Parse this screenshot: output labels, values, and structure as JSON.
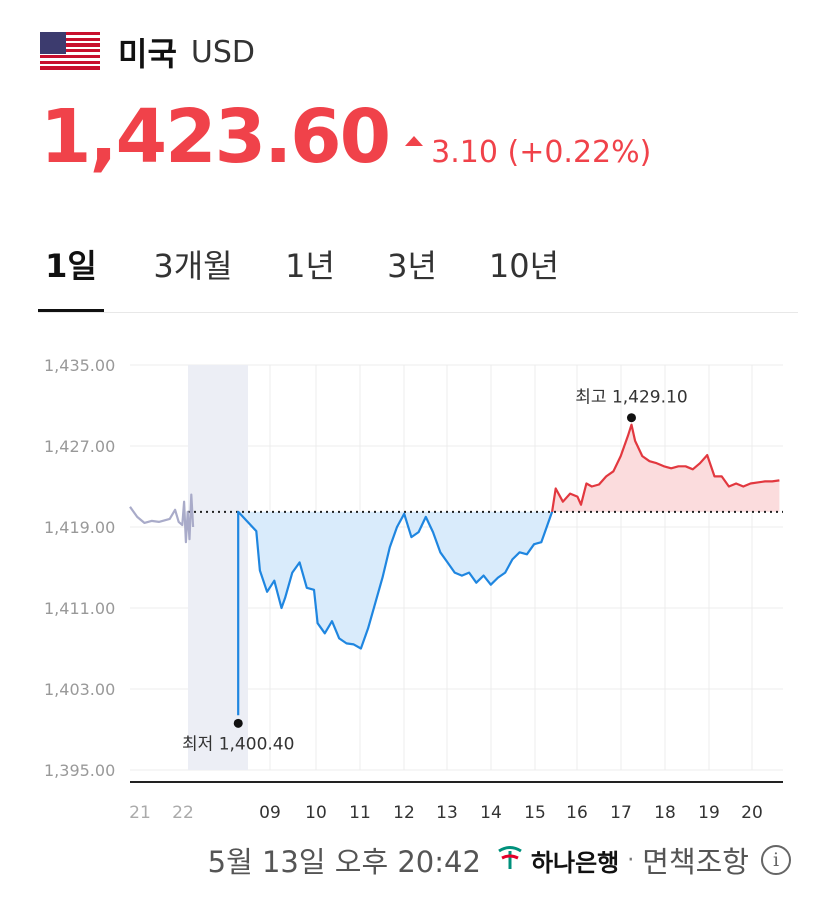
{
  "header": {
    "country": "미국",
    "currency": "USD",
    "flag_icon": "us-flag-icon"
  },
  "quote": {
    "price": "1,423.60",
    "change": "3.10 (+0.22%)",
    "direction": "up",
    "color": "#f0424a"
  },
  "tabs": [
    {
      "label": "1일",
      "active": true
    },
    {
      "label": "3개월",
      "active": false
    },
    {
      "label": "1년",
      "active": false
    },
    {
      "label": "3년",
      "active": false
    },
    {
      "label": "10년",
      "active": false
    }
  ],
  "chart_data": {
    "type": "line",
    "y_ticks": [
      "1,435.00",
      "1,427.00",
      "1,419.00",
      "1,411.00",
      "1,403.00",
      "1,395.00"
    ],
    "ylim": [
      1395,
      1435
    ],
    "x_ticks": [
      "21",
      "22",
      "moon-icon",
      "09",
      "10",
      "11",
      "12",
      "13",
      "14",
      "15",
      "16",
      "17",
      "18",
      "19",
      "20"
    ],
    "baseline": 1420.5,
    "high_label": "최고 1,429.10",
    "high_value": 1429.1,
    "low_label": "최저 1,400.40",
    "low_value": 1400.4,
    "colors": {
      "previous": "#a9abc9",
      "down": "#1f86e0",
      "up": "#e2383f",
      "down_fill": "#d9ebfb",
      "up_fill": "#fbdcdd",
      "night_band": "#eceef5"
    },
    "series": [
      {
        "segment": "previous",
        "points": [
          [
            20.5,
            1421
          ],
          [
            20.7,
            1420
          ],
          [
            20.9,
            1419.4
          ],
          [
            21.1,
            1419.6
          ],
          [
            21.3,
            1419.5
          ],
          [
            21.6,
            1419.8
          ],
          [
            21.75,
            1420.7
          ],
          [
            21.85,
            1419.5
          ],
          [
            21.95,
            1419.2
          ],
          [
            22.0,
            1421.5
          ],
          [
            22.05,
            1417.5
          ],
          [
            22.1,
            1420.5
          ],
          [
            22.15,
            1417.8
          ],
          [
            22.2,
            1422.2
          ],
          [
            22.25,
            1419
          ]
        ]
      },
      {
        "segment": "down",
        "points": [
          [
            23.5,
            1400.4
          ],
          [
            23.5,
            1420.5
          ],
          [
            24.0,
            1418.6
          ],
          [
            24.1,
            1414.7
          ],
          [
            24.3,
            1412.6
          ],
          [
            24.5,
            1413.7
          ],
          [
            24.7,
            1411
          ],
          [
            24.8,
            1412
          ],
          [
            25.0,
            1414.5
          ],
          [
            25.2,
            1415.5
          ],
          [
            25.4,
            1413
          ],
          [
            25.6,
            1412.8
          ],
          [
            25.7,
            1409.5
          ],
          [
            25.9,
            1408.5
          ],
          [
            26.1,
            1409.7
          ],
          [
            26.3,
            1408
          ],
          [
            26.5,
            1407.5
          ],
          [
            26.7,
            1407.4
          ],
          [
            26.9,
            1407
          ],
          [
            27.1,
            1409
          ],
          [
            27.3,
            1411.5
          ],
          [
            27.5,
            1414
          ],
          [
            27.7,
            1417
          ],
          [
            27.9,
            1419
          ],
          [
            28.1,
            1420.3
          ],
          [
            28.3,
            1418
          ],
          [
            28.5,
            1418.5
          ],
          [
            28.7,
            1420
          ],
          [
            28.9,
            1418.5
          ],
          [
            29.1,
            1416.5
          ],
          [
            29.3,
            1415.5
          ],
          [
            29.5,
            1414.5
          ],
          [
            29.7,
            1414.2
          ],
          [
            29.9,
            1414.5
          ],
          [
            30.1,
            1413.5
          ],
          [
            30.3,
            1414.2
          ],
          [
            30.5,
            1413.3
          ],
          [
            30.7,
            1414
          ],
          [
            30.9,
            1414.5
          ],
          [
            31.1,
            1415.8
          ],
          [
            31.3,
            1416.5
          ],
          [
            31.5,
            1416.3
          ],
          [
            31.7,
            1417.3
          ],
          [
            31.9,
            1417.5
          ],
          [
            32.0,
            1418.5
          ],
          [
            32.2,
            1420.5
          ]
        ]
      },
      {
        "segment": "up",
        "points": [
          [
            32.2,
            1420.5
          ],
          [
            32.3,
            1422.8
          ],
          [
            32.5,
            1421.5
          ],
          [
            32.7,
            1422.3
          ],
          [
            32.9,
            1422
          ],
          [
            33.0,
            1421.2
          ],
          [
            33.15,
            1423.3
          ],
          [
            33.3,
            1423
          ],
          [
            33.5,
            1423.2
          ],
          [
            33.7,
            1424
          ],
          [
            33.9,
            1424.5
          ],
          [
            34.1,
            1426
          ],
          [
            34.3,
            1428
          ],
          [
            34.4,
            1429.1
          ],
          [
            34.5,
            1427.5
          ],
          [
            34.7,
            1426
          ],
          [
            34.9,
            1425.5
          ],
          [
            35.1,
            1425.3
          ],
          [
            35.3,
            1425
          ],
          [
            35.5,
            1424.8
          ],
          [
            35.7,
            1425
          ],
          [
            35.9,
            1425
          ],
          [
            36.1,
            1424.7
          ],
          [
            36.3,
            1425.3
          ],
          [
            36.5,
            1426.1
          ],
          [
            36.7,
            1424
          ],
          [
            36.9,
            1424
          ],
          [
            37.1,
            1423
          ],
          [
            37.3,
            1423.3
          ],
          [
            37.5,
            1423
          ],
          [
            37.7,
            1423.3
          ],
          [
            37.9,
            1423.4
          ],
          [
            38.1,
            1423.5
          ],
          [
            38.3,
            1423.5
          ],
          [
            38.5,
            1423.6
          ]
        ]
      }
    ]
  },
  "footer": {
    "timestamp": "5월 13일 오후 20:42",
    "bank_icon": "hana-bank-logo-icon",
    "bank_name": "하나은행",
    "separator": "·",
    "disclaimer": "면책조항",
    "info_icon": "info-icon",
    "info_glyph": "i"
  }
}
